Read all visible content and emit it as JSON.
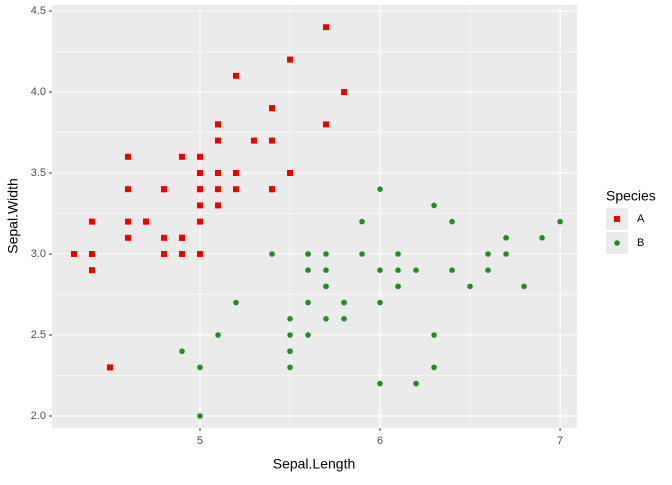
{
  "chart_data": {
    "type": "scatter",
    "x_label": "Sepal.Length",
    "y_label": "Sepal.Width",
    "legend_title": "Species",
    "legend": "right",
    "grid": true,
    "xlim": [
      4.178,
      7.094
    ],
    "ylim": [
      1.926,
      4.537
    ],
    "xticks": [
      5,
      6,
      7
    ],
    "yticks": [
      {
        "value": 2,
        "label": "2.0"
      },
      2.5,
      {
        "value": 3,
        "label": "3.0"
      },
      3.5,
      {
        "value": 4,
        "label": "4.0"
      },
      4.5
    ],
    "series": [
      {
        "name": "A",
        "color": "#ee0000",
        "marker": "square",
        "x": [
          5.1,
          4.9,
          4.7,
          4.6,
          5.0,
          5.4,
          4.6,
          5.0,
          4.4,
          4.9,
          5.4,
          4.8,
          4.8,
          4.3,
          5.8,
          5.7,
          5.4,
          5.1,
          5.7,
          5.1,
          5.4,
          5.1,
          4.6,
          5.1,
          4.8,
          5.0,
          5.0,
          5.2,
          5.2,
          4.7,
          4.8,
          5.4,
          5.2,
          5.5,
          4.9,
          5.0,
          5.5,
          4.9,
          4.4,
          5.1,
          5.0,
          4.5,
          4.4,
          5.0,
          5.1,
          4.8,
          5.1,
          4.6,
          5.3,
          5.0
        ],
        "values": [
          3.5,
          3.0,
          3.2,
          3.1,
          3.6,
          3.9,
          3.4,
          3.4,
          2.9,
          3.1,
          3.7,
          3.4,
          3.0,
          3.0,
          4.0,
          4.4,
          3.9,
          3.5,
          3.8,
          3.8,
          3.4,
          3.7,
          3.6,
          3.3,
          3.4,
          3.0,
          3.4,
          3.5,
          3.4,
          3.2,
          3.1,
          3.4,
          4.1,
          4.2,
          3.1,
          3.2,
          3.5,
          3.6,
          3.0,
          3.4,
          3.5,
          2.3,
          3.2,
          3.5,
          3.8,
          3.0,
          3.8,
          3.2,
          3.7,
          3.3
        ]
      },
      {
        "name": "B",
        "color": "#228b22",
        "marker": "circle",
        "x": [
          7.0,
          6.4,
          6.9,
          5.5,
          6.5,
          5.7,
          6.3,
          4.9,
          6.6,
          5.2,
          5.0,
          5.9,
          6.0,
          6.1,
          5.6,
          6.7,
          5.6,
          5.8,
          6.2,
          5.6,
          5.9,
          6.1,
          6.3,
          6.1,
          6.4,
          6.6,
          6.8,
          6.7,
          6.0,
          5.7,
          5.5,
          5.5,
          5.8,
          6.0,
          5.4,
          6.0,
          6.7,
          6.3,
          5.6,
          5.5,
          5.5,
          6.1,
          5.8,
          5.0,
          5.6,
          5.7,
          5.7,
          6.2,
          5.1,
          5.7
        ],
        "values": [
          3.2,
          3.2,
          3.1,
          2.3,
          2.8,
          2.8,
          3.3,
          2.4,
          2.9,
          2.7,
          2.0,
          3.0,
          2.2,
          2.9,
          2.9,
          3.1,
          3.0,
          2.7,
          2.2,
          2.5,
          3.2,
          2.8,
          2.5,
          2.8,
          2.9,
          3.0,
          2.8,
          3.0,
          2.9,
          2.6,
          2.4,
          2.4,
          2.7,
          2.7,
          3.0,
          3.4,
          3.1,
          2.3,
          3.0,
          2.5,
          2.6,
          3.0,
          2.6,
          2.3,
          2.7,
          3.0,
          2.9,
          2.9,
          2.5,
          2.8
        ]
      }
    ]
  }
}
